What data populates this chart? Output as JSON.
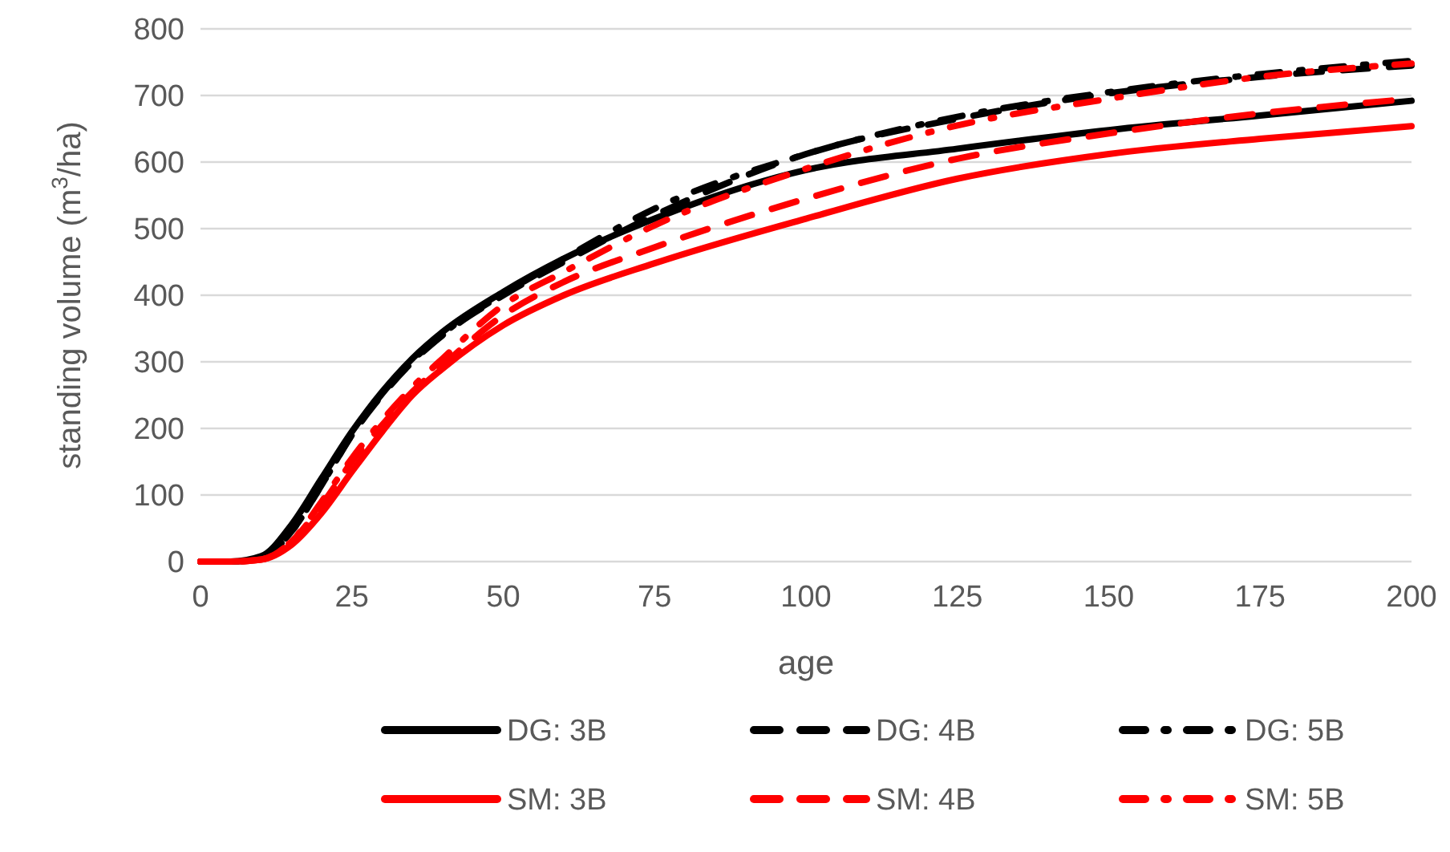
{
  "chart_data": {
    "type": "line",
    "xlabel": "age",
    "ylabel": "standing volume (m$^{3}$/ha)",
    "x": [
      0,
      5,
      10,
      15,
      20,
      25,
      30,
      35,
      40,
      50,
      60,
      75,
      100,
      125,
      150,
      175,
      200
    ],
    "series": [
      {
        "name": "DG: 3B",
        "color": "#000000",
        "line_style": "solid",
        "values": [
          0,
          0,
          8,
          55,
          125,
          195,
          255,
          305,
          345,
          405,
          455,
          515,
          588,
          620,
          648,
          670,
          692
        ]
      },
      {
        "name": "DG: 4B",
        "color": "#000000",
        "line_style": "dashed",
        "values": [
          0,
          0,
          5,
          45,
          115,
          190,
          250,
          300,
          340,
          400,
          450,
          520,
          612,
          665,
          703,
          728,
          745
        ]
      },
      {
        "name": "DG: 5B",
        "color": "#000000",
        "line_style": "dotted",
        "values": [
          0,
          0,
          5,
          45,
          115,
          190,
          252,
          302,
          342,
          402,
          455,
          530,
          612,
          668,
          705,
          732,
          752
        ]
      },
      {
        "name": "SM: 3B",
        "color": "#ff0000",
        "line_style": "solid",
        "values": [
          0,
          0,
          3,
          25,
          73,
          135,
          195,
          250,
          290,
          355,
          400,
          448,
          515,
          575,
          612,
          635,
          654
        ]
      },
      {
        "name": "SM: 4B",
        "color": "#ff0000",
        "line_style": "dashed",
        "values": [
          0,
          0,
          3,
          30,
          85,
          150,
          205,
          255,
          295,
          370,
          420,
          472,
          545,
          605,
          643,
          673,
          695
        ]
      },
      {
        "name": "SM: 5B",
        "color": "#ff0000",
        "line_style": "dotted",
        "values": [
          0,
          0,
          3,
          30,
          90,
          155,
          212,
          262,
          305,
          385,
          435,
          505,
          590,
          655,
          695,
          728,
          748
        ]
      }
    ],
    "xlim": [
      0,
      200
    ],
    "xticks": [
      0,
      25,
      50,
      75,
      100,
      125,
      150,
      175,
      200
    ],
    "ylim": [
      0,
      800
    ],
    "yticks": [
      0,
      100,
      200,
      300,
      400,
      500,
      600,
      700,
      800
    ],
    "grid": "y",
    "legend": "bottom",
    "marker": "none"
  }
}
